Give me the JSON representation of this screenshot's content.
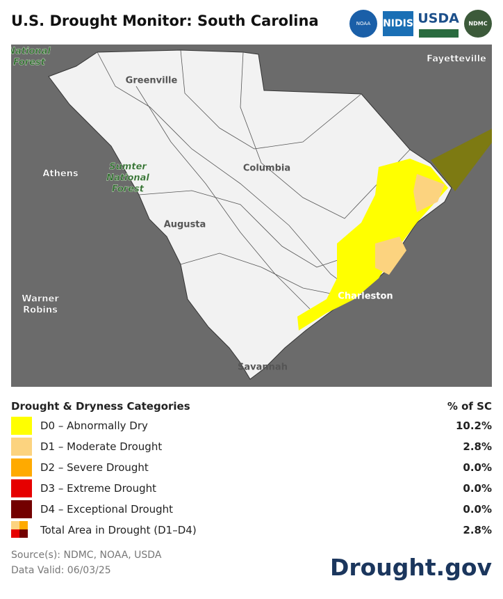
{
  "header": {
    "title": "U.S. Drought Monitor: South Carolina",
    "logos": [
      "NOAA",
      "NIDIS",
      "USDA",
      "NDMC"
    ]
  },
  "map_labels": [
    {
      "lines": [
        "National",
        "Forest"
      ]
    },
    {
      "lines": [
        "Fayetteville"
      ]
    },
    {
      "lines": [
        "Greenville"
      ]
    },
    {
      "lines": [
        "Athens"
      ]
    },
    {
      "lines": [
        "Sumter",
        "National",
        "Forest"
      ]
    },
    {
      "lines": [
        "Columbia"
      ]
    },
    {
      "lines": [
        "Augusta"
      ]
    },
    {
      "lines": [
        "Warner",
        "Robins"
      ]
    },
    {
      "lines": [
        "Charleston"
      ]
    },
    {
      "lines": [
        "Savannah"
      ]
    }
  ],
  "legend": {
    "title": "Drought & Dryness Categories",
    "value_header": "% of SC",
    "rows": [
      {
        "name": "D0 – Abnormally Dry",
        "percent": "10.2%",
        "color": "#ffff00"
      },
      {
        "name": "D1 – Moderate Drought",
        "percent": "2.8%",
        "color": "#fcd37f"
      },
      {
        "name": "D2 – Severe Drought",
        "percent": "0.0%",
        "color": "#ffaa00"
      },
      {
        "name": "D3 – Extreme Drought",
        "percent": "0.0%",
        "color": "#e60000"
      },
      {
        "name": "D4 – Exceptional Drought",
        "percent": "0.0%",
        "color": "#730000"
      },
      {
        "name": "Total Area in Drought (D1–D4)",
        "percent": "2.8%"
      }
    ]
  },
  "footer": {
    "sources": "Source(s): NDMC, NOAA, USDA",
    "valid": "Data Valid: 06/03/25",
    "brand": "Drought.gov"
  }
}
